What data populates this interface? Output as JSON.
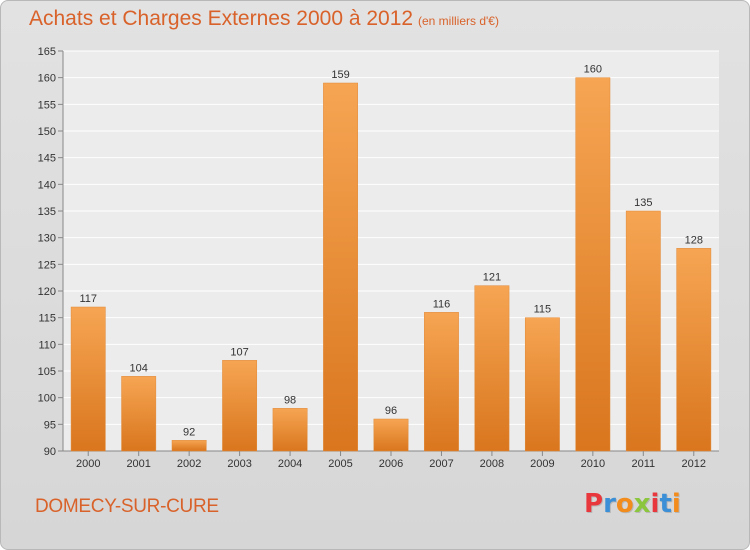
{
  "header": {
    "title": "Achats et Charges Externes 2000 à 2012",
    "subtitle": "(en milliers d'€)"
  },
  "footer": {
    "commune": "DOMECY-SUR-CURE",
    "brand_letters": [
      {
        "char": "P",
        "color": "#e8383d"
      },
      {
        "char": "r",
        "color": "#3a8fd6"
      },
      {
        "char": "o",
        "color": "#f28c1c"
      },
      {
        "char": "x",
        "color": "#8cc63e"
      },
      {
        "char": "i",
        "color": "#e8383d"
      },
      {
        "char": "t",
        "color": "#3a8fd6"
      },
      {
        "char": "i",
        "color": "#f28c1c"
      }
    ]
  },
  "colors": {
    "bar_light": "#f6a553",
    "bar_dark": "#d9761e",
    "grid": "#ffffff",
    "plot_bg": "#ececec"
  },
  "chart_data": {
    "type": "bar",
    "title": "Achats et Charges Externes 2000 à 2012",
    "subtitle": "(en milliers d'€)",
    "xlabel": "",
    "ylabel": "",
    "categories": [
      "2000",
      "2001",
      "2002",
      "2003",
      "2004",
      "2005",
      "2006",
      "2007",
      "2008",
      "2009",
      "2010",
      "2011",
      "2012"
    ],
    "values": [
      117,
      104,
      92,
      107,
      98,
      159,
      96,
      116,
      121,
      115,
      160,
      135,
      128
    ],
    "data_labels": [
      "117",
      "104",
      "92",
      "107",
      "98",
      "159",
      "96",
      "116",
      "121",
      "115",
      "160",
      "135",
      "128"
    ],
    "ylim": [
      90,
      165
    ],
    "yticks": [
      90,
      95,
      100,
      105,
      110,
      115,
      120,
      125,
      130,
      135,
      140,
      145,
      150,
      155,
      160,
      165
    ],
    "grid": true,
    "legend": "none"
  }
}
